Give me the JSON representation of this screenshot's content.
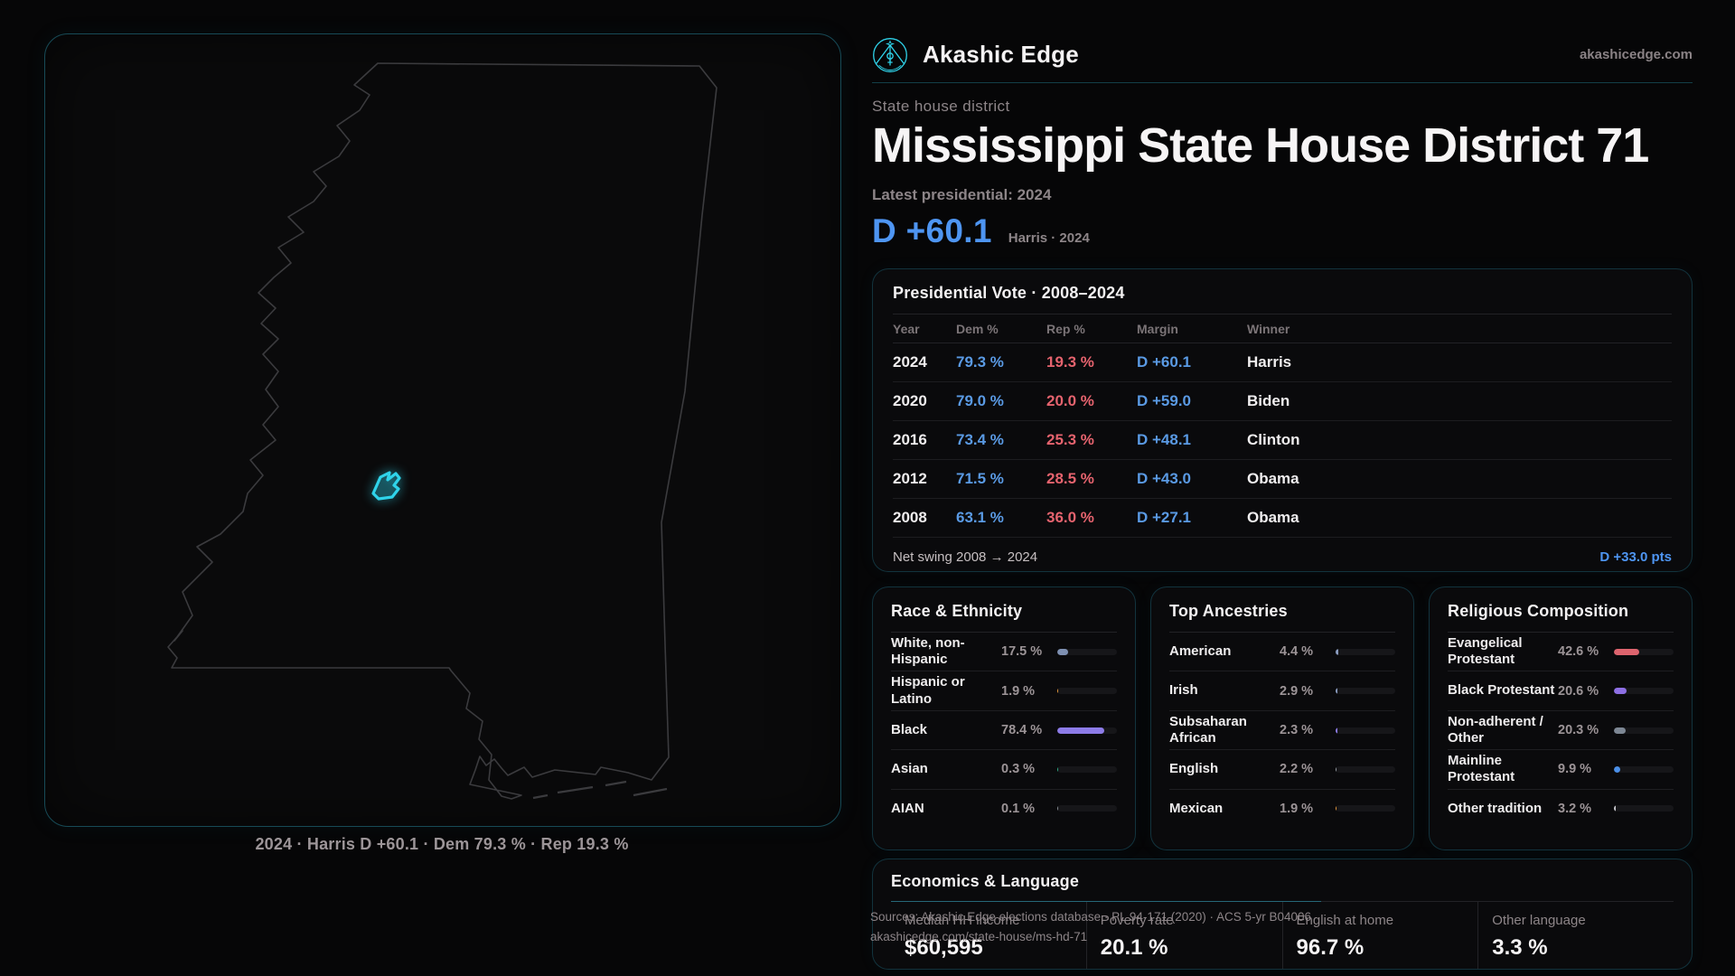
{
  "brand": {
    "name": "Akashic Edge",
    "domain": "akashicedge.com",
    "accent": "#2fd3ea"
  },
  "header": {
    "kicker": "State house district",
    "title": "Mississippi State House District 71",
    "latest_label": "Latest presidential: 2024",
    "margin_big": "D +60.1",
    "margin_context": "Harris · 2024"
  },
  "map": {
    "caption": "2024 · Harris D +60.1 · Dem 79.3 % · Rep 19.3 %"
  },
  "theme": {
    "dem_blue": "#5a9ae4",
    "rep_red": "#e5636e",
    "margin_blue": "#4e95f2",
    "page_bg": "#060607"
  },
  "pres_table": {
    "title": "Presidential Vote · 2008–2024",
    "columns": [
      "Year",
      "Dem %",
      "Rep %",
      "Margin",
      "Winner"
    ],
    "rows": [
      {
        "year": "2024",
        "dem": "79.3 %",
        "rep": "19.3 %",
        "margin": "D +60.1",
        "winner": "Harris"
      },
      {
        "year": "2020",
        "dem": "79.0 %",
        "rep": "20.0 %",
        "margin": "D +59.0",
        "winner": "Biden"
      },
      {
        "year": "2016",
        "dem": "73.4 %",
        "rep": "25.3 %",
        "margin": "D +48.1",
        "winner": "Clinton"
      },
      {
        "year": "2012",
        "dem": "71.5 %",
        "rep": "28.5 %",
        "margin": "D +43.0",
        "winner": "Obama"
      },
      {
        "year": "2008",
        "dem": "63.1 %",
        "rep": "36.0 %",
        "margin": "D +27.1",
        "winner": "Obama"
      }
    ],
    "net_swing_label": "Net swing 2008 → 2024",
    "net_swing_value": "D +33.0 pts"
  },
  "race": {
    "title": "Race & Ethnicity",
    "rows": [
      {
        "label": "White, non-Hispanic",
        "value": "17.5 %",
        "pct": 17.5,
        "color": "#7e90b2"
      },
      {
        "label": "Hispanic or Latino",
        "value": "1.9 %",
        "pct": 1.9,
        "color": "#e89b3c"
      },
      {
        "label": "Black",
        "value": "78.4 %",
        "pct": 78.4,
        "color": "#8d7ce8"
      },
      {
        "label": "Asian",
        "value": "0.3 %",
        "pct": 0.3,
        "color": "#2fae88"
      },
      {
        "label": "AIAN",
        "value": "0.1 %",
        "pct": 0.1,
        "color": "#8a8f97"
      }
    ]
  },
  "ancestries": {
    "title": "Top Ancestries",
    "rows": [
      {
        "label": "American",
        "value": "4.4 %",
        "pct": 4.4,
        "color": "#8a9cc0"
      },
      {
        "label": "Irish",
        "value": "2.9 %",
        "pct": 2.9,
        "color": "#8a9cc0"
      },
      {
        "label": "Subsaharan African",
        "value": "2.3 %",
        "pct": 2.3,
        "color": "#8d7ce8"
      },
      {
        "label": "English",
        "value": "2.2 %",
        "pct": 2.2,
        "color": "#9aa0a8"
      },
      {
        "label": "Mexican",
        "value": "1.9 %",
        "pct": 1.9,
        "color": "#e89b3c"
      }
    ]
  },
  "religion": {
    "title": "Religious Composition",
    "rows": [
      {
        "label": "Evangelical Protestant",
        "value": "42.6 %",
        "pct": 42.6,
        "color": "#dd646e"
      },
      {
        "label": "Black Protestant",
        "value": "20.6 %",
        "pct": 20.6,
        "color": "#8d6fe4"
      },
      {
        "label": "Non-adherent / Other",
        "value": "20.3 %",
        "pct": 20.3,
        "color": "#7d8794"
      },
      {
        "label": "Mainline Protestant",
        "value": "9.9 %",
        "pct": 9.9,
        "color": "#4a8fe8"
      },
      {
        "label": "Other tradition",
        "value": "3.2 %",
        "pct": 3.2,
        "color": "#c6c6cb"
      }
    ]
  },
  "economics": {
    "title": "Economics & Language",
    "stats": [
      {
        "label": "Median HH income",
        "value": "$60,595"
      },
      {
        "label": "Poverty rate",
        "value": "20.1 %"
      },
      {
        "label": "English at home",
        "value": "96.7 %"
      },
      {
        "label": "Other language",
        "value": "3.3 %"
      }
    ]
  },
  "footer": {
    "line1": "Sources: Akashic Edge elections database · PL 94-171 (2020) · ACS 5-yr B04006",
    "line2": "akashicedge.com/state-house/ms-hd-71"
  }
}
